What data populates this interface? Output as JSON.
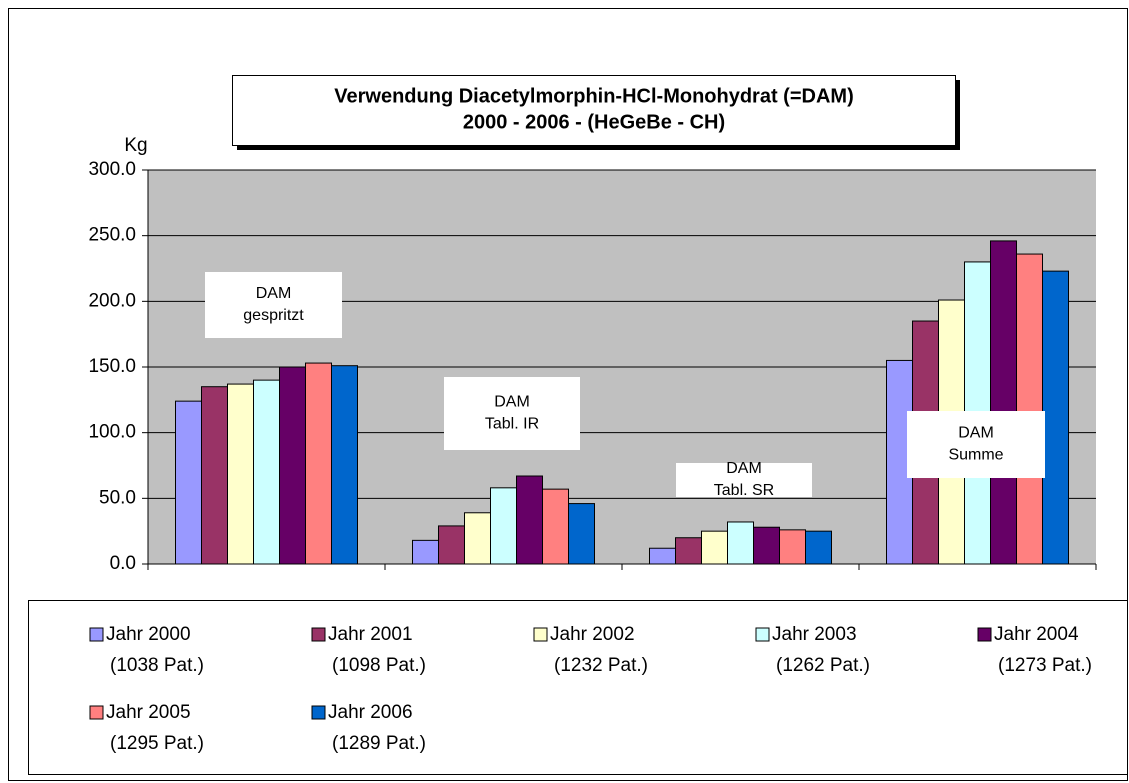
{
  "chart_data": {
    "type": "bar",
    "title_lines": [
      "Verwendung Diacetylmorphin-HCl-Monohydrat  (=DAM)",
      "2000 - 2006  -  (HeGeBe - CH)"
    ],
    "y_label": "Kg",
    "categories": [
      null,
      null,
      null,
      null
    ],
    "annotations": [
      {
        "lines": [
          "DAM",
          "gespritzt"
        ]
      },
      {
        "lines": [
          "DAM",
          "Tabl. IR"
        ]
      },
      {
        "lines": [
          "DAM",
          "Tabl. SR"
        ]
      },
      {
        "lines": [
          "DAM",
          "Summe"
        ]
      }
    ],
    "series": [
      {
        "name": "Jahr 2000",
        "label2": "(1038 Pat.)",
        "color": "#9999ff",
        "values": [
          124,
          18,
          12,
          155
        ]
      },
      {
        "name": "Jahr 2001",
        "label2": "(1098 Pat.)",
        "color": "#993366",
        "values": [
          135,
          29,
          20,
          185
        ]
      },
      {
        "name": "Jahr 2002",
        "label2": "(1232 Pat.)",
        "color": "#ffffcc",
        "values": [
          137,
          39,
          25,
          201
        ]
      },
      {
        "name": "Jahr 2003",
        "label2": "(1262 Pat.)",
        "color": "#ccffff",
        "values": [
          140,
          58,
          32,
          230
        ]
      },
      {
        "name": "Jahr 2004",
        "label2": "(1273 Pat.)",
        "color": "#660066",
        "values": [
          150,
          67,
          28,
          246
        ]
      },
      {
        "name": "Jahr 2005",
        "label2": "(1295 Pat.)",
        "color": "#ff8080",
        "values": [
          153,
          57,
          26,
          236
        ]
      },
      {
        "name": "Jahr 2006",
        "label2": "(1289 Pat.)",
        "color": "#0066cc",
        "values": [
          151,
          46,
          25,
          223
        ]
      }
    ],
    "ylim": [
      0,
      300
    ],
    "yticks": [
      {
        "value": 0,
        "label": "0.0"
      },
      {
        "value": 50,
        "label": "50.0"
      },
      {
        "value": 100,
        "label": "100.0"
      },
      {
        "value": 150,
        "label": "150.0"
      },
      {
        "value": 200,
        "label": "200.0"
      },
      {
        "value": 250,
        "label": "250.0"
      },
      {
        "value": 300,
        "label": "300.0"
      }
    ],
    "grid": true,
    "plot_background": "#c0c0c0",
    "legend": "bottom"
  }
}
